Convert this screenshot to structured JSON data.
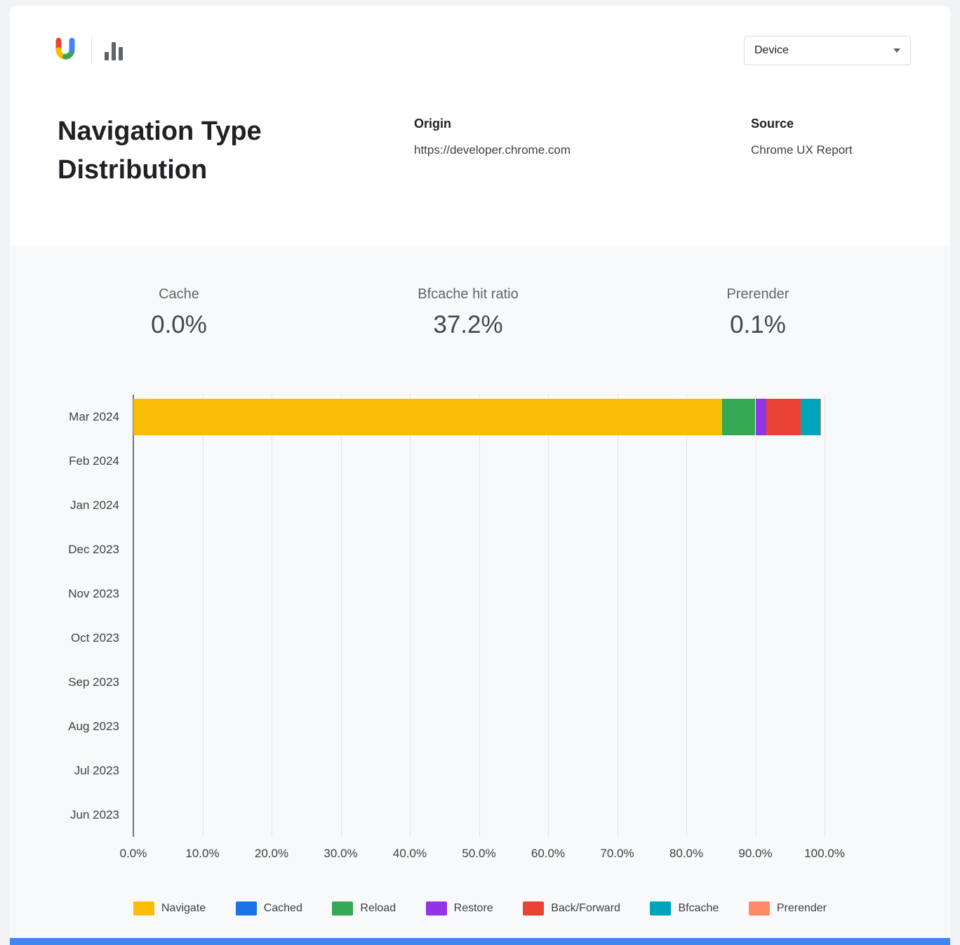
{
  "header": {
    "device_dropdown": {
      "label": "Device"
    }
  },
  "title_section": {
    "title": "Navigation Type Distribution",
    "origin_label": "Origin",
    "origin_value": "https://developer.chrome.com",
    "source_label": "Source",
    "source_value": "Chrome UX Report"
  },
  "stats": [
    {
      "label": "Cache",
      "value": "0.0%"
    },
    {
      "label": "Bfcache hit ratio",
      "value": "37.2%"
    },
    {
      "label": "Prerender",
      "value": "0.1%"
    }
  ],
  "chart_data": {
    "type": "bar",
    "orientation": "horizontal_stacked",
    "title": "Navigation Type Distribution",
    "categories": [
      "Mar 2024",
      "Feb 2024",
      "Jan 2024",
      "Dec 2023",
      "Nov 2023",
      "Oct 2023",
      "Sep 2023",
      "Aug 2023",
      "Jul 2023",
      "Jun 2023"
    ],
    "series": [
      {
        "name": "Navigate",
        "color": "#FBBC04",
        "values": [
          85.2,
          0,
          0,
          0,
          0,
          0,
          0,
          0,
          0,
          0
        ]
      },
      {
        "name": "Cached",
        "color": "#1A73E8",
        "values": [
          0,
          0,
          0,
          0,
          0,
          0,
          0,
          0,
          0,
          0
        ]
      },
      {
        "name": "Reload",
        "color": "#34A853",
        "values": [
          4.8,
          0,
          0,
          0,
          0,
          0,
          0,
          0,
          0,
          0
        ]
      },
      {
        "name": "Restore",
        "color": "#9334E6",
        "values": [
          1.6,
          0,
          0,
          0,
          0,
          0,
          0,
          0,
          0,
          0
        ]
      },
      {
        "name": "Back/Forward",
        "color": "#EA4335",
        "values": [
          4.9,
          0,
          0,
          0,
          0,
          0,
          0,
          0,
          0,
          0
        ]
      },
      {
        "name": "Bfcache",
        "color": "#00A5BC",
        "values": [
          2.9,
          0,
          0,
          0,
          0,
          0,
          0,
          0,
          0,
          0
        ]
      },
      {
        "name": "Prerender",
        "color": "#FF8A65",
        "values": [
          0.1,
          0,
          0,
          0,
          0,
          0,
          0,
          0,
          0,
          0
        ]
      }
    ],
    "x_ticks": [
      "0.0%",
      "10.0%",
      "20.0%",
      "30.0%",
      "40.0%",
      "50.0%",
      "60.0%",
      "70.0%",
      "80.0%",
      "90.0%",
      "100.0%"
    ],
    "xlim": [
      0,
      100
    ],
    "grid": true,
    "legend_position": "bottom"
  },
  "bottom_strip_color": "#4285F4"
}
